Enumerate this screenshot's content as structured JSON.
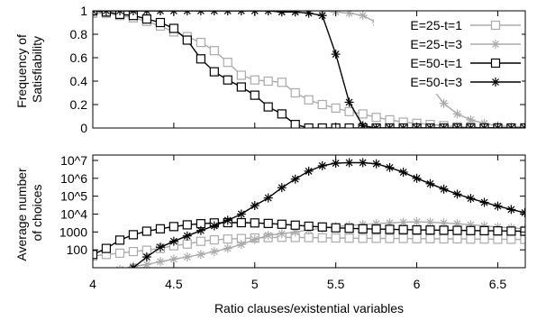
{
  "chart_data": [
    {
      "type": "line",
      "ylabel": "Frequency of\nSatisfiability",
      "xlim": [
        4,
        6.67
      ],
      "ylim": [
        0,
        1
      ],
      "yticks": [
        "0",
        "0.2",
        "0.4",
        "0.6",
        "0.8",
        "1"
      ],
      "ytick_values": [
        0,
        0.2,
        0.4,
        0.6,
        0.8,
        1
      ],
      "grid": false,
      "legend": "top-right",
      "series": [
        {
          "name": "E=25-t=1",
          "color": "#aaaaaa",
          "marker": "square",
          "x": [
            4.0,
            4.083,
            4.167,
            4.25,
            4.333,
            4.417,
            4.5,
            4.583,
            4.667,
            4.75,
            4.833,
            4.917,
            5.0,
            5.083,
            5.167,
            5.25,
            5.333,
            5.417,
            5.5,
            5.583,
            5.667,
            5.75,
            5.833,
            5.917,
            6.0,
            6.083,
            6.167,
            6.25,
            6.333,
            6.417,
            6.5,
            6.583,
            6.667
          ],
          "y": [
            0.98,
            0.98,
            0.96,
            0.94,
            0.91,
            0.87,
            0.82,
            0.78,
            0.73,
            0.66,
            0.56,
            0.45,
            0.41,
            0.4,
            0.39,
            0.3,
            0.24,
            0.2,
            0.17,
            0.14,
            0.12,
            0.09,
            0.07,
            0.05,
            0.04,
            0.03,
            0.02,
            0.01,
            0.01,
            0.0,
            0.0,
            0.0,
            0.0
          ]
        },
        {
          "name": "E=25-t=3",
          "color": "#aaaaaa",
          "marker": "star",
          "x": [
            4.0,
            4.083,
            4.167,
            4.25,
            4.333,
            4.417,
            4.5,
            4.583,
            4.667,
            4.75,
            4.833,
            4.917,
            5.0,
            5.083,
            5.167,
            5.25,
            5.333,
            5.417,
            5.5,
            5.583,
            5.667,
            5.75,
            5.833,
            5.917,
            6.0,
            6.083,
            6.167,
            6.25,
            6.333,
            6.417,
            6.5,
            6.583,
            6.667
          ],
          "y": [
            0.97,
            0.99,
            1.0,
            1.0,
            1.0,
            1.0,
            1.0,
            1.0,
            1.0,
            1.0,
            1.0,
            1.0,
            1.0,
            1.0,
            1.0,
            1.0,
            1.0,
            1.0,
            0.99,
            0.98,
            0.96,
            0.9,
            0.8,
            0.68,
            0.5,
            0.36,
            0.21,
            0.12,
            0.07,
            0.04,
            0.02,
            0.01,
            0.01
          ]
        },
        {
          "name": "E=50-t=1",
          "color": "#000000",
          "marker": "square",
          "x": [
            4.0,
            4.083,
            4.167,
            4.25,
            4.333,
            4.417,
            4.5,
            4.583,
            4.667,
            4.75,
            4.833,
            4.917,
            5.0,
            5.083,
            5.167,
            5.25,
            5.333,
            5.417,
            5.5,
            5.583,
            5.667,
            5.75,
            5.833,
            5.917,
            6.0,
            6.083,
            6.167,
            6.25,
            6.333,
            6.417,
            6.5,
            6.583,
            6.667
          ],
          "y": [
            1.0,
            0.99,
            0.97,
            0.96,
            0.93,
            0.9,
            0.85,
            0.75,
            0.59,
            0.48,
            0.41,
            0.35,
            0.28,
            0.18,
            0.12,
            0.03,
            0.0,
            0.0,
            0.0,
            0.0,
            0.0,
            0.0,
            0.0,
            0.0,
            0.0,
            0.0,
            0.0,
            0.0,
            0.0,
            0.0,
            0.0,
            0.0,
            0.0
          ]
        },
        {
          "name": "E=50-t=3",
          "color": "#000000",
          "marker": "star",
          "x": [
            4.0,
            4.083,
            4.167,
            4.25,
            4.333,
            4.417,
            4.5,
            4.583,
            4.667,
            4.75,
            4.833,
            4.917,
            5.0,
            5.083,
            5.167,
            5.25,
            5.333,
            5.417,
            5.5,
            5.583,
            5.667,
            5.75,
            5.833,
            5.917,
            6.0,
            6.083,
            6.167,
            6.25,
            6.333,
            6.417,
            6.5,
            6.583,
            6.667
          ],
          "y": [
            1.0,
            1.0,
            1.0,
            1.0,
            1.0,
            1.0,
            1.0,
            1.0,
            1.0,
            1.0,
            1.0,
            1.0,
            1.0,
            1.0,
            0.99,
            0.99,
            0.98,
            0.96,
            0.63,
            0.22,
            0.02,
            0.0,
            0.0,
            0.0,
            0.0,
            0.0,
            0.0,
            0.0,
            0.0,
            0.0,
            0.0,
            0.0,
            0.0
          ]
        }
      ]
    },
    {
      "type": "line",
      "ylabel": "Average number\nof choices",
      "xlabel": "Ratio clauses/existential variables",
      "xlim": [
        4,
        6.67
      ],
      "xticks": [
        "4",
        "4.5",
        "5",
        "5.5",
        "6",
        "6.5"
      ],
      "xtick_values": [
        4,
        4.5,
        5,
        5.5,
        6,
        6.5
      ],
      "yscale": "log",
      "ylim": [
        10,
        20000000
      ],
      "yticks": [
        "100",
        "1000",
        "10^4",
        "10^5",
        "10^6",
        "10^7"
      ],
      "ytick_values": [
        100,
        1000,
        10000,
        100000,
        1000000,
        10000000
      ],
      "grid": false,
      "series": [
        {
          "name": "E=25-t=1",
          "color": "#aaaaaa",
          "marker": "square",
          "x": [
            4.0,
            4.083,
            4.167,
            4.25,
            4.333,
            4.417,
            4.5,
            4.583,
            4.667,
            4.75,
            4.833,
            4.917,
            5.0,
            5.083,
            5.167,
            5.25,
            5.333,
            5.417,
            5.5,
            5.583,
            5.667,
            5.75,
            5.833,
            5.917,
            6.0,
            6.083,
            6.167,
            6.25,
            6.333,
            6.417,
            6.5,
            6.583,
            6.667
          ],
          "y": [
            45,
            55,
            65,
            80,
            95,
            120,
            170,
            210,
            300,
            360,
            400,
            430,
            460,
            480,
            500,
            490,
            480,
            470,
            460,
            450,
            440,
            440,
            430,
            430,
            420,
            420,
            410,
            410,
            400,
            400,
            390,
            390,
            380
          ]
        },
        {
          "name": "E=25-t=3",
          "color": "#aaaaaa",
          "marker": "star",
          "x": [
            4.167,
            4.25,
            4.333,
            4.417,
            4.5,
            4.583,
            4.667,
            4.75,
            4.833,
            4.917,
            5.0,
            5.083,
            5.167,
            5.25,
            5.333,
            5.417,
            5.5,
            5.583,
            5.667,
            5.75,
            5.833,
            5.917,
            6.0,
            6.083,
            6.167,
            6.25,
            6.333,
            6.417,
            6.5,
            6.583,
            6.667
          ],
          "y": [
            8,
            12,
            15,
            22,
            30,
            40,
            55,
            80,
            120,
            200,
            380,
            650,
            800,
            1000,
            1300,
            1600,
            2000,
            2300,
            2600,
            2900,
            3200,
            3500,
            3700,
            3500,
            3200,
            2900,
            2500,
            2200,
            1900,
            1700,
            1500
          ]
        },
        {
          "name": "E=50-t=1",
          "color": "#000000",
          "marker": "square",
          "x": [
            4.0,
            4.083,
            4.167,
            4.25,
            4.333,
            4.417,
            4.5,
            4.583,
            4.667,
            4.75,
            4.833,
            4.917,
            5.0,
            5.083,
            5.167,
            5.25,
            5.333,
            5.417,
            5.5,
            5.583,
            5.667,
            5.75,
            5.833,
            5.917,
            6.0,
            6.083,
            6.167,
            6.25,
            6.333,
            6.417,
            6.5,
            6.583,
            6.667
          ],
          "y": [
            55,
            120,
            350,
            700,
            1100,
            1500,
            2000,
            2500,
            2900,
            3200,
            3300,
            3300,
            3200,
            3000,
            2700,
            2400,
            2100,
            1900,
            1700,
            1600,
            1500,
            1450,
            1400,
            1350,
            1300,
            1280,
            1250,
            1230,
            1200,
            1180,
            1150,
            1120,
            1100
          ]
        },
        {
          "name": "E=50-t=3",
          "color": "#000000",
          "marker": "star",
          "x": [
            4.25,
            4.333,
            4.417,
            4.5,
            4.583,
            4.667,
            4.75,
            4.833,
            4.917,
            5.0,
            5.083,
            5.167,
            5.25,
            5.333,
            5.417,
            5.5,
            5.583,
            5.667,
            5.75,
            5.833,
            5.917,
            6.0,
            6.083,
            6.167,
            6.25,
            6.333,
            6.417,
            6.5,
            6.583,
            6.667
          ],
          "y": [
            10,
            40,
            140,
            300,
            600,
            1200,
            2200,
            4500,
            10000,
            30000,
            80000,
            300000,
            900000,
            2500000,
            5000000,
            7000000,
            7500000,
            7500000,
            6500000,
            4000000,
            2200000,
            1000000,
            500000,
            250000,
            130000,
            75000,
            45000,
            28000,
            18000,
            12000
          ]
        }
      ]
    }
  ]
}
